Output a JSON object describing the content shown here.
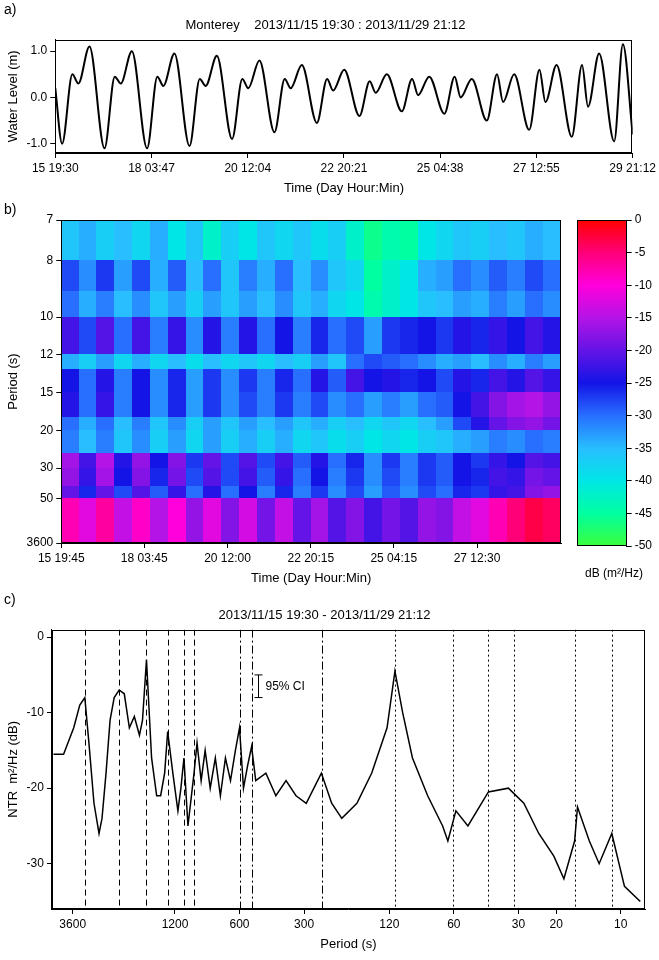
{
  "chart_data": [
    {
      "panel": "a)",
      "type": "line",
      "title": "Monterey    2013/11/15 19:30 : 2013/11/29 21:12",
      "x_label": "Time (Day Hour:Min)",
      "y_label": "Water Level (m)",
      "color": "#000000",
      "grid": false,
      "x": [
        0,
        4,
        10,
        13.5,
        20,
        28.8,
        34.8,
        38.3,
        44.8,
        53.7,
        59.7,
        63.2,
        69.7,
        78.5,
        84.5,
        88,
        94.5,
        103.4,
        109.4,
        112.9,
        119.4,
        128.2,
        134.2,
        137.7,
        144.2,
        153,
        159,
        162.5,
        169,
        177.9,
        183.9,
        187.4,
        193.9,
        202.7,
        208.7,
        212.2,
        218.7,
        227.6,
        233.6,
        237.1,
        243.6,
        252.4,
        258.4,
        261.9,
        268.4,
        277.2,
        283.2,
        286.7,
        293.2,
        302.1,
        308.1,
        311.6,
        318.1,
        326.9,
        332,
        337.7
      ],
      "values": [
        0.2,
        -1.0,
        0.5,
        0.3,
        1.1,
        -1.1,
        0.45,
        0.3,
        1.0,
        -1.1,
        0.45,
        0.25,
        0.95,
        -1.05,
        0.4,
        0.25,
        0.9,
        -0.9,
        0.4,
        0.2,
        0.8,
        -0.75,
        0.4,
        0.2,
        0.7,
        -0.55,
        0.4,
        0.15,
        0.6,
        -0.4,
        0.35,
        0.1,
        0.5,
        -0.3,
        0.4,
        0.05,
        0.45,
        -0.35,
        0.45,
        0.0,
        0.4,
        -0.5,
        0.5,
        -0.1,
        0.5,
        -0.7,
        0.6,
        -0.1,
        0.7,
        -0.85,
        0.7,
        -0.2,
        0.95,
        -0.95,
        1.15,
        -0.8
      ],
      "xlim": [
        0,
        337.7
      ],
      "xticks": [
        {
          "value": 0,
          "label": "15 19:30"
        },
        {
          "value": 56.283,
          "label": "18 03:47"
        },
        {
          "value": 112.567,
          "label": "20 12:04"
        },
        {
          "value": 168.85,
          "label": "22 20:21"
        },
        {
          "value": 225.133,
          "label": "25 04:38"
        },
        {
          "value": 281.417,
          "label": "27 12:55"
        },
        {
          "value": 337.7,
          "label": "29 21:12"
        }
      ],
      "ylim": [
        -1.2,
        1.25
      ],
      "yticks": [
        {
          "value": -1,
          "label": "-1.0"
        },
        {
          "value": 0,
          "label": "0.0"
        },
        {
          "value": 1,
          "label": "1.0"
        }
      ]
    },
    {
      "panel": "b)",
      "type": "heatmap",
      "x_label": "Time (Day Hour:Min)",
      "y_label": "Period (s)",
      "grid": false,
      "x_edges": [
        0.25,
        12.3,
        24.3,
        36.4,
        48.4,
        60.5,
        72.5,
        84.6,
        96.6,
        108.7,
        120.7,
        132.8,
        144.8,
        156.9,
        168.9,
        181,
        193,
        205.1,
        217.1,
        229.2,
        241.2,
        253.3,
        265.3,
        277.4,
        289.4,
        301.5,
        313.5,
        325.6,
        337.7
      ],
      "y_edges": [
        7,
        8,
        9,
        10,
        12,
        13,
        15,
        18,
        20,
        25,
        30,
        40,
        50,
        3600
      ],
      "z": [
        [
          -36,
          -34,
          -37,
          -35,
          -38,
          -34,
          -40,
          -36,
          -42,
          -37,
          -40,
          -36,
          -38,
          -36,
          -39,
          -37,
          -42,
          -46,
          -44,
          -45,
          -40,
          -38,
          -36,
          -37,
          -35,
          -36,
          -34,
          -35
        ],
        [
          -28,
          -32,
          -27,
          -33,
          -28,
          -34,
          -29,
          -35,
          -30,
          -36,
          -31,
          -34,
          -30,
          -35,
          -32,
          -36,
          -38,
          -45,
          -42,
          -40,
          -34,
          -33,
          -30,
          -32,
          -29,
          -31,
          -28,
          -30
        ],
        [
          -30,
          -34,
          -31,
          -35,
          -32,
          -36,
          -33,
          -37,
          -33,
          -36,
          -33,
          -35,
          -32,
          -36,
          -34,
          -38,
          -40,
          -44,
          -42,
          -40,
          -36,
          -35,
          -33,
          -34,
          -31,
          -33,
          -30,
          -32
        ],
        [
          -22,
          -28,
          -21,
          -30,
          -22,
          -31,
          -23,
          -32,
          -24,
          -31,
          -24,
          -30,
          -25,
          -31,
          -26,
          -30,
          -28,
          -33,
          -27,
          -26,
          -25,
          -27,
          -24,
          -26,
          -23,
          -25,
          -22,
          -24
        ],
        [
          -34,
          -37,
          -33,
          -38,
          -34,
          -38,
          -35,
          -39,
          -35,
          -38,
          -36,
          -38,
          -35,
          -37,
          -33,
          -36,
          -30,
          -28,
          -29,
          -30,
          -32,
          -34,
          -33,
          -35,
          -32,
          -34,
          -31,
          -33
        ],
        [
          -25,
          -30,
          -24,
          -31,
          -25,
          -32,
          -26,
          -33,
          -27,
          -32,
          -27,
          -31,
          -26,
          -30,
          -24,
          -29,
          -22,
          -25,
          -24,
          -26,
          -25,
          -28,
          -24,
          -26,
          -22,
          -24,
          -21,
          -23
        ],
        [
          -24,
          -30,
          -23,
          -31,
          -25,
          -32,
          -26,
          -33,
          -27,
          -32,
          -28,
          -31,
          -27,
          -31,
          -28,
          -32,
          -30,
          -33,
          -31,
          -33,
          -30,
          -29,
          -25,
          -22,
          -18,
          -16,
          -15,
          -17
        ],
        [
          -30,
          -34,
          -30,
          -35,
          -31,
          -36,
          -32,
          -37,
          -33,
          -36,
          -33,
          -35,
          -33,
          -36,
          -34,
          -37,
          -35,
          -38,
          -36,
          -38,
          -35,
          -33,
          -28,
          -24,
          -20,
          -18,
          -17,
          -19
        ],
        [
          -31,
          -35,
          -31,
          -36,
          -32,
          -37,
          -33,
          -38,
          -33,
          -37,
          -34,
          -37,
          -34,
          -38,
          -36,
          -39,
          -37,
          -40,
          -38,
          -40,
          -37,
          -36,
          -34,
          -33,
          -31,
          -32,
          -30,
          -31
        ],
        [
          -16,
          -22,
          -15,
          -24,
          -17,
          -25,
          -18,
          -27,
          -20,
          -28,
          -21,
          -28,
          -22,
          -29,
          -24,
          -30,
          -26,
          -32,
          -27,
          -31,
          -27,
          -29,
          -25,
          -27,
          -23,
          -25,
          -21,
          -22
        ],
        [
          -17,
          -23,
          -16,
          -25,
          -18,
          -26,
          -19,
          -28,
          -21,
          -28,
          -22,
          -29,
          -23,
          -30,
          -25,
          -31,
          -27,
          -32,
          -28,
          -31,
          -27,
          -29,
          -25,
          -26,
          -22,
          -23,
          -19,
          -20
        ],
        [
          -20,
          -26,
          -20,
          -28,
          -21,
          -29,
          -23,
          -30,
          -24,
          -30,
          -25,
          -31,
          -26,
          -31,
          -27,
          -32,
          -28,
          -33,
          -29,
          -32,
          -28,
          -30,
          -26,
          -27,
          -23,
          -22,
          -18,
          -17
        ],
        [
          -8,
          -12,
          -7,
          -14,
          -9,
          -15,
          -10,
          -17,
          -12,
          -18,
          -13,
          -19,
          -14,
          -20,
          -16,
          -21,
          -18,
          -22,
          -19,
          -21,
          -17,
          -18,
          -14,
          -12,
          -8,
          -5,
          -3,
          -4
        ]
      ],
      "xlim": [
        0.25,
        337.7
      ],
      "xticks": [
        {
          "value": 0.25,
          "label": "15 19:45"
        },
        {
          "value": 56.25,
          "label": "18 03:45"
        },
        {
          "value": 112.5,
          "label": "20 12:00"
        },
        {
          "value": 168.75,
          "label": "22 20:15"
        },
        {
          "value": 224.75,
          "label": "25 04:15"
        },
        {
          "value": 281,
          "label": "27 12:30"
        }
      ],
      "ylim": [
        7,
        3600
      ],
      "yticks": [
        7,
        8,
        10,
        12,
        15,
        20,
        30,
        50,
        3600
      ],
      "colorbar": {
        "label": "dB (m²/Hz)",
        "zlim": [
          -50,
          0
        ],
        "zticks": [
          0,
          -5,
          -10,
          -15,
          -20,
          -25,
          -30,
          -35,
          -40,
          -45,
          -50
        ]
      }
    },
    {
      "panel": "c)",
      "type": "line",
      "title": "2013/11/15 19:30 - 2013/11/29 21:12",
      "x_label": "Period (s)",
      "y_label": "NTR  m²/Hz (dB)",
      "color": "#000000",
      "grid": false,
      "log": "x",
      "x": [
        4425,
        3971,
        3561,
        3337,
        3161,
        3025,
        2865,
        2714,
        2628,
        2517,
        2410,
        2306,
        2185,
        2069,
        1959,
        1857,
        1758,
        1701,
        1630,
        1543,
        1461,
        1400,
        1341,
        1298,
        1228,
        1163,
        1126,
        1090,
        1044,
        978,
        947,
        906,
        868,
        822,
        778,
        737,
        698,
        661,
        627,
        600,
        575,
        550,
        527,
        504,
        452,
        406,
        364,
        327,
        293,
        249,
        223,
        200,
        170,
        145,
        123,
        113,
        104,
        93.6,
        79.5,
        67.7,
        64,
        58.7,
        51.6,
        41.4,
        33.4,
        28.3,
        24.1,
        20.5,
        18.4,
        16.4,
        15.9,
        14,
        12.6,
        11,
        9.6,
        8.1
      ],
      "values": [
        -15.5,
        -15.5,
        -12,
        -9,
        -8,
        -14,
        -22,
        -26,
        -24,
        -18,
        -11,
        -8,
        -7,
        -7.5,
        -12,
        -10.5,
        -13,
        -11,
        -3,
        -16,
        -21,
        -21,
        -18,
        -12.5,
        -18,
        -23,
        -20,
        -16,
        -25,
        -18,
        -14,
        -19,
        -15,
        -20,
        -16,
        -21,
        -16,
        -19,
        -15,
        -12,
        -20,
        -17,
        -14.5,
        -19,
        -18,
        -21,
        -19,
        -21,
        -22,
        -18,
        -22,
        -24,
        -22,
        -18,
        -12,
        -4.5,
        -10,
        -16,
        -21,
        -25,
        -27,
        -23,
        -25,
        -20.5,
        -20,
        -22,
        -26,
        -29,
        -32,
        -27,
        -22.5,
        -27,
        -30,
        -26,
        -33,
        -35
      ],
      "xlim": [
        4500,
        7.7
      ],
      "xticks": [
        3600,
        1200,
        600,
        300,
        120,
        60,
        30,
        20,
        10
      ],
      "ylim": [
        -36,
        1
      ],
      "yticks": [
        0,
        -10,
        -20,
        -30
      ],
      "vlines": [
        {
          "line_style": "dashed",
          "x": [
            3160,
            2185,
            1630,
            1298,
            1090,
            978
          ]
        },
        {
          "line_style": "dashdot",
          "x": [
            600,
            527,
            248
          ]
        },
        {
          "line_style": "dotted",
          "x": [
            113,
            60.6,
            41.4,
            31.3,
            16.3,
            11.0
          ]
        }
      ],
      "ci": {
        "x": 493,
        "low": -8,
        "high": -5,
        "label": "95% CI"
      }
    }
  ]
}
